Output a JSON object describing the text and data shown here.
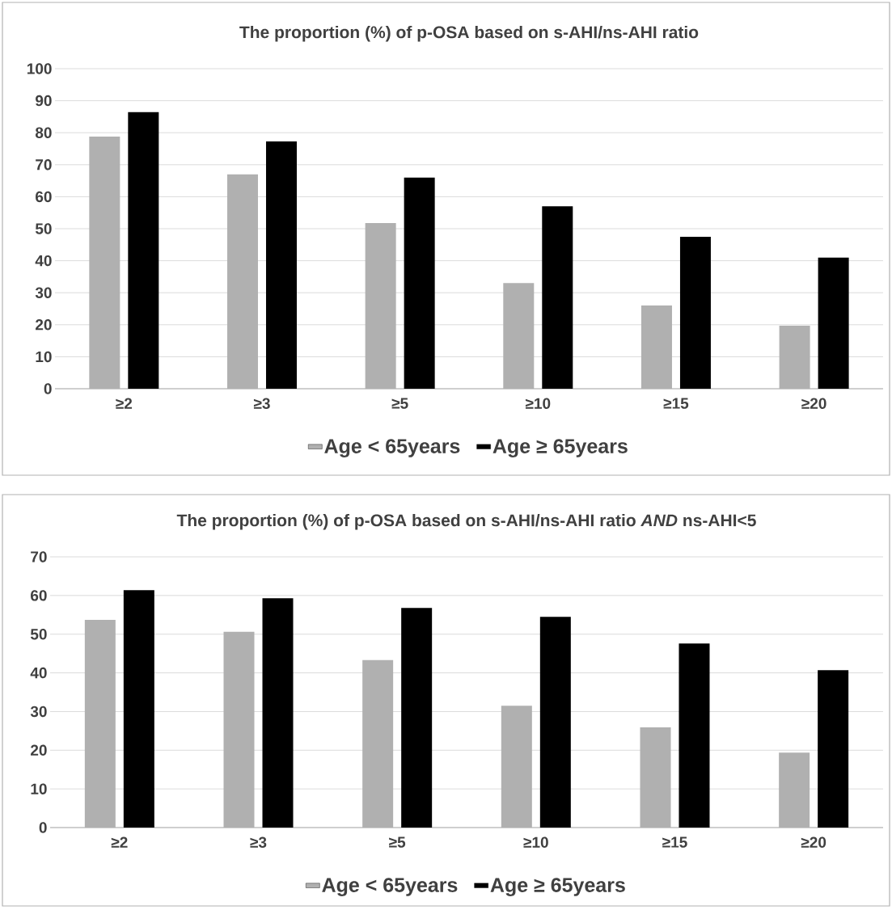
{
  "chart_data": [
    {
      "type": "bar",
      "title": "The proportion (%) of p-OSA based on s-AHI/ns-AHI ratio",
      "categories": [
        "≥2",
        "≥3",
        "≥5",
        "≥10",
        "≥15",
        "≥20"
      ],
      "series": [
        {
          "name": "Age < 65years",
          "color": "#b0b0b0",
          "values": [
            78.8,
            67,
            51.8,
            33,
            26,
            19.7
          ]
        },
        {
          "name": "Age ≥ 65years",
          "color": "#000000",
          "values": [
            86.4,
            77.3,
            66,
            57,
            47.5,
            41
          ]
        }
      ],
      "ylim": [
        0,
        100
      ],
      "yticks": [
        0,
        10,
        20,
        30,
        40,
        50,
        60,
        70,
        80,
        90,
        100
      ],
      "grid": "y",
      "legend": "bottom"
    },
    {
      "type": "bar",
      "title": "The proportion (%) of p-OSA based on s-AHI/ns-AHI ratio *AND* ns-AHI<5",
      "categories": [
        "≥2",
        "≥3",
        "≥5",
        "≥10",
        "≥15",
        "≥20"
      ],
      "series": [
        {
          "name": "Age < 65years",
          "color": "#b0b0b0",
          "values": [
            53.7,
            50.6,
            43.3,
            31.5,
            25.9,
            19.4
          ]
        },
        {
          "name": "Age ≥ 65years",
          "color": "#000000",
          "values": [
            61.4,
            59.3,
            56.8,
            54.5,
            47.6,
            40.7
          ]
        }
      ],
      "ylim": [
        0,
        70
      ],
      "yticks": [
        0,
        10,
        20,
        30,
        40,
        50,
        60,
        70
      ],
      "grid": "y",
      "legend": "bottom"
    }
  ]
}
